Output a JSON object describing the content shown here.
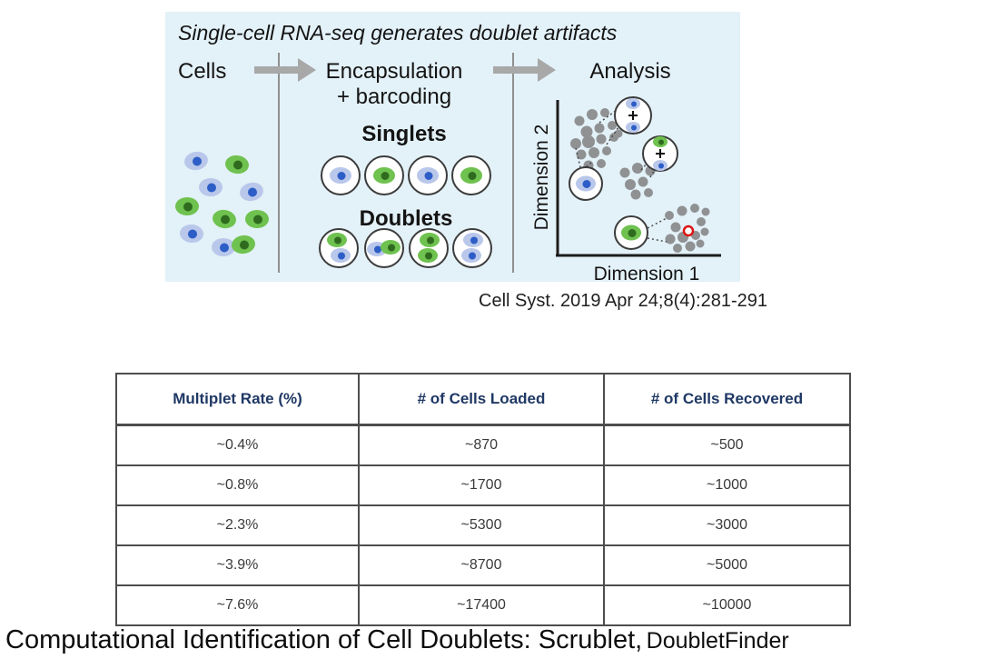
{
  "diagram": {
    "title": "Single-cell RNA-seq generates doublet artifacts",
    "steps": {
      "cells": "Cells",
      "encapsulation_line1": "Encapsulation",
      "encapsulation_line2": "+ barcoding",
      "analysis": "Analysis"
    },
    "singlets_label": "Singlets",
    "doublets_label": "Doublets",
    "singlets": [
      "blue",
      "green",
      "blue",
      "green"
    ],
    "doublets": [
      [
        "green",
        "blue"
      ],
      [
        "blue",
        "green"
      ],
      [
        "green",
        "green"
      ],
      [
        "blue",
        "blue"
      ]
    ],
    "axis": {
      "x": "Dimension 1",
      "y": "Dimension 2"
    }
  },
  "citation": "Cell Syst. 2019 Apr 24;8(4):281-291",
  "table": {
    "headers": [
      "Multiplet Rate (%)",
      "# of Cells Loaded",
      "# of Cells Recovered"
    ],
    "rows": [
      [
        "~0.4%",
        "~870",
        "~500"
      ],
      [
        "~0.8%",
        "~1700",
        "~1000"
      ],
      [
        "~2.3%",
        "~5300",
        "~3000"
      ],
      [
        "~3.9%",
        "~8700",
        "~5000"
      ],
      [
        "~7.6%",
        "~17400",
        "~10000"
      ]
    ]
  },
  "caption": {
    "main": "Computational Identification of Cell Doublets: Scrublet,",
    "secondary": "DoubletFinder"
  },
  "colors": {
    "panel_bg": "#e3f1f8",
    "cell_blue_body": "#b9c7ea",
    "cell_blue_nucleus": "#2d5ec7",
    "cell_green_body": "#6fc24f",
    "cell_green_nucleus": "#2f6b1f",
    "cluster_dot": "#8f9193",
    "arrow_gray": "#a8a8a8",
    "divider_gray": "#8f8f8f",
    "axis_black": "#1c1c1c",
    "circle_stroke": "#3c3c3c",
    "header_text": "#1f3864",
    "table_border": "#4d4d4d",
    "doublet_marker_red": "#dd1414"
  }
}
